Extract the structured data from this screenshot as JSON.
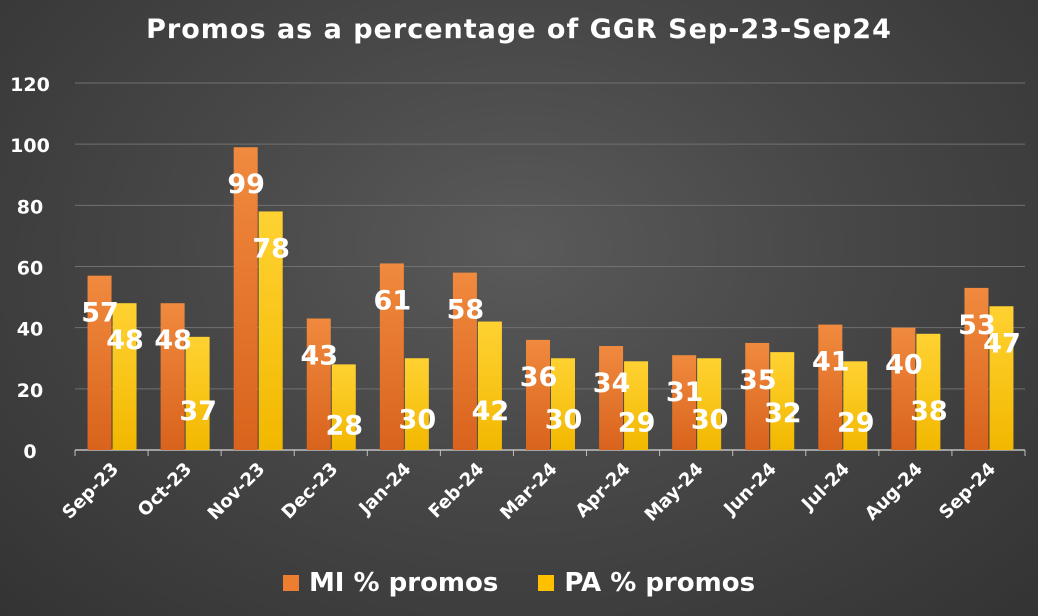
{
  "chart_data": {
    "type": "bar",
    "title": "Promos as a percentage of GGR Sep-23-Sep24",
    "categories": [
      "Sep-23",
      "Oct-23",
      "Nov-23",
      "Dec-23",
      "Jan-24",
      "Feb-24",
      "Mar-24",
      "Apr-24",
      "May-24",
      "Jun-24",
      "Jul-24",
      "Aug-24",
      "Sep-24"
    ],
    "series": [
      {
        "name": "MI % promos",
        "values": [
          57,
          48,
          99,
          43,
          61,
          58,
          36,
          34,
          31,
          35,
          41,
          40,
          53
        ],
        "color": "#ed7d31"
      },
      {
        "name": "PA % promos",
        "values": [
          48,
          37,
          78,
          28,
          30,
          42,
          30,
          29,
          30,
          32,
          29,
          38,
          47
        ],
        "color": "#ffc000"
      }
    ],
    "ylim": [
      0,
      120
    ],
    "yticks": [
      "0",
      "20",
      "40",
      "60",
      "80",
      "100",
      "120"
    ],
    "grid": true,
    "legend_position": "bottom",
    "xlabel": "",
    "ylabel": ""
  }
}
